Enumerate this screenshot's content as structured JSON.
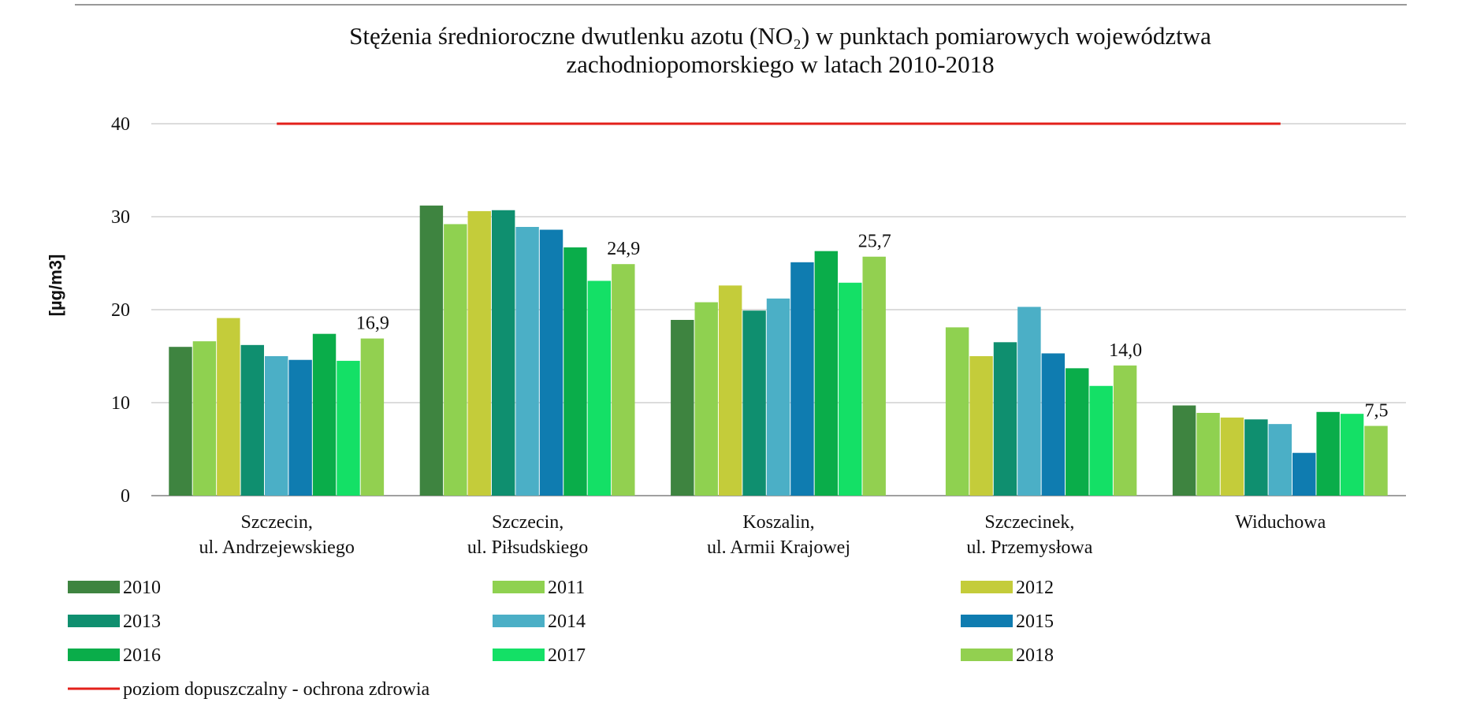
{
  "chart_data": {
    "type": "bar",
    "title": "Stężenia średnioroczne dwutlenku azotu (NO₂) w punktach pomiarowych województwa\nzachodniopomorskiego w latach 2010-2018",
    "y_label": "[µg/m3]",
    "categories": [
      "Szczecin,\nul. Andrzejewskiego",
      "Szczecin,\nul. Piłsudskiego",
      "Koszalin,\nul. Armii Krajowej",
      "Szczecinek,\nul. Przemysłowa",
      "Widuchowa"
    ],
    "series": [
      {
        "name": "2010",
        "color": "#3e8440",
        "values": [
          16.0,
          31.2,
          18.9,
          null,
          9.7
        ]
      },
      {
        "name": "2011",
        "color": "#8fd150",
        "values": [
          16.6,
          29.2,
          20.8,
          18.1,
          8.9
        ]
      },
      {
        "name": "2012",
        "color": "#c4cc3a",
        "values": [
          19.1,
          30.6,
          22.6,
          15.0,
          8.4
        ]
      },
      {
        "name": "2013",
        "color": "#0f8f6f",
        "values": [
          16.2,
          30.7,
          19.9,
          16.5,
          8.2
        ]
      },
      {
        "name": "2014",
        "color": "#4bafc6",
        "values": [
          15.0,
          28.9,
          21.2,
          20.3,
          7.7
        ]
      },
      {
        "name": "2015",
        "color": "#0f7cb0",
        "values": [
          14.6,
          28.6,
          25.1,
          15.3,
          4.6
        ]
      },
      {
        "name": "2016",
        "color": "#0aad4a",
        "values": [
          17.4,
          26.7,
          26.3,
          13.7,
          9.0
        ]
      },
      {
        "name": "2017",
        "color": "#14e066",
        "values": [
          14.5,
          23.1,
          22.9,
          11.8,
          8.8
        ]
      },
      {
        "name": "2018",
        "color": "#92d050",
        "values": [
          16.9,
          24.9,
          25.7,
          14.0,
          7.5
        ],
        "value_labels": [
          "16,9",
          "24,9",
          "25,7",
          "14,0",
          "7,5"
        ]
      },
      {
        "name": "poziom dopuszczalny - ochrona zdrowia",
        "type": "line",
        "color": "#e3201b",
        "values": [
          40,
          40,
          40,
          40,
          40
        ]
      }
    ],
    "ylim": [
      0,
      40
    ],
    "yticks": [
      0,
      10,
      20,
      30,
      40
    ],
    "grid": true
  }
}
